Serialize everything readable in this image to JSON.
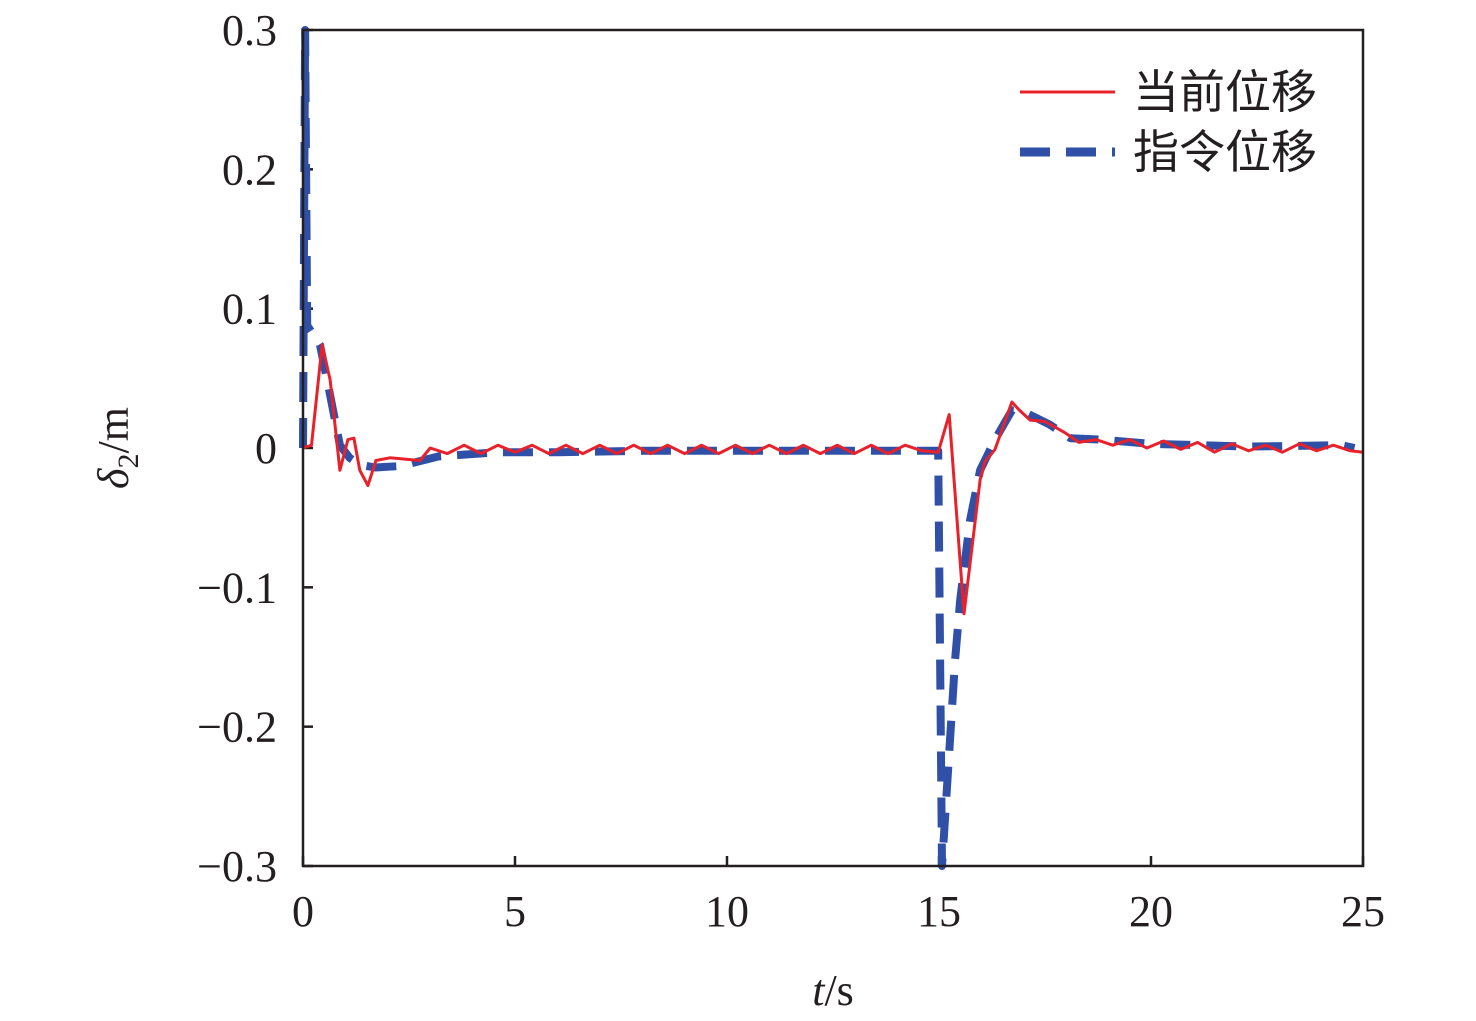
{
  "chart_data": {
    "type": "line",
    "title": "",
    "xlabel_italic": "t",
    "xlabel_unit": "/s",
    "ylabel_symbol": "δ",
    "ylabel_sub": "2",
    "ylabel_unit": "/m",
    "xlim": [
      0,
      25
    ],
    "ylim": [
      -0.3,
      0.3
    ],
    "xticks": [
      0,
      5,
      10,
      15,
      20,
      25
    ],
    "xtick_labels": [
      "0",
      "5",
      "10",
      "15",
      "20",
      "25"
    ],
    "yticks": [
      -0.3,
      -0.2,
      -0.1,
      0,
      0.1,
      0.2,
      0.3
    ],
    "ytick_labels": [
      "−0.3",
      "−0.2",
      "−0.1",
      "0",
      "0.1",
      "0.2",
      "0.3"
    ],
    "grid": false,
    "legend_placement": "top-right",
    "series": [
      {
        "name": "当前位移",
        "color": "#e8212a",
        "style": "solid",
        "x": [
          0,
          0.2,
          0.45,
          0.64,
          0.87,
          1.06,
          1.2,
          1.34,
          1.53,
          1.72,
          2.05,
          2.4,
          2.76,
          3.0,
          3.4,
          3.8,
          4.2,
          4.6,
          5.0,
          5.4,
          5.8,
          6.2,
          6.6,
          7.0,
          7.4,
          7.8,
          8.2,
          8.6,
          9.0,
          9.4,
          9.8,
          10.2,
          10.6,
          11.0,
          11.4,
          11.8,
          12.2,
          12.6,
          13.0,
          13.4,
          13.8,
          14.2,
          14.6,
          14.98,
          15.24,
          15.59,
          15.97,
          16.08,
          16.32,
          16.72,
          16.9,
          17.15,
          17.5,
          17.97,
          18.3,
          18.7,
          19.1,
          19.5,
          19.9,
          20.3,
          20.7,
          21.1,
          21.5,
          21.9,
          22.3,
          22.7,
          23.1,
          23.5,
          23.9,
          24.3,
          24.7,
          25.0
        ],
        "y": [
          0,
          0.002,
          0.074,
          0.049,
          -0.016,
          0.006,
          0.007,
          -0.016,
          -0.027,
          -0.009,
          -0.007,
          -0.008,
          -0.009,
          0.0,
          -0.004,
          0.002,
          -0.004,
          0.002,
          -0.003,
          0.002,
          -0.004,
          0.002,
          -0.004,
          0.002,
          -0.004,
          0.002,
          -0.004,
          0.002,
          -0.004,
          0.002,
          -0.004,
          0.002,
          -0.004,
          0.002,
          -0.004,
          0.002,
          -0.004,
          0.002,
          -0.004,
          0.002,
          -0.004,
          0.002,
          -0.002,
          -0.003,
          0.024,
          -0.119,
          -0.023,
          -0.01,
          -0.001,
          0.033,
          0.027,
          0.02,
          0.019,
          0.011,
          0.004,
          0.006,
          0.002,
          0.006,
          0.0,
          0.005,
          -0.001,
          0.004,
          -0.003,
          0.003,
          -0.002,
          0.002,
          -0.003,
          0.003,
          -0.002,
          0.002,
          -0.002,
          -0.003
        ]
      },
      {
        "name": "指令位移",
        "color": "#3050a8",
        "style": "dashed",
        "x": [
          0,
          0.05,
          0.1,
          0.4,
          0.64,
          0.87,
          1.1,
          1.34,
          1.7,
          2.29,
          3.2,
          4.6,
          6.0,
          8.0,
          10.0,
          12.0,
          14.0,
          14.98,
          15.07,
          15.38,
          15.5,
          15.73,
          15.97,
          16.32,
          16.72,
          17.0,
          17.6,
          18.1,
          18.8,
          20.0,
          22.3,
          24.5,
          24.8
        ],
        "y": [
          0,
          0.3,
          0.088,
          0.074,
          0.038,
          0.002,
          -0.007,
          -0.012,
          -0.014,
          -0.013,
          -0.006,
          -0.003,
          -0.003,
          -0.002,
          -0.002,
          -0.002,
          -0.002,
          -0.002,
          -0.3,
          -0.152,
          -0.109,
          -0.052,
          -0.016,
          0.006,
          0.027,
          0.026,
          0.017,
          0.007,
          0.006,
          0.003,
          0.001,
          0.002,
          0.0
        ]
      }
    ]
  }
}
